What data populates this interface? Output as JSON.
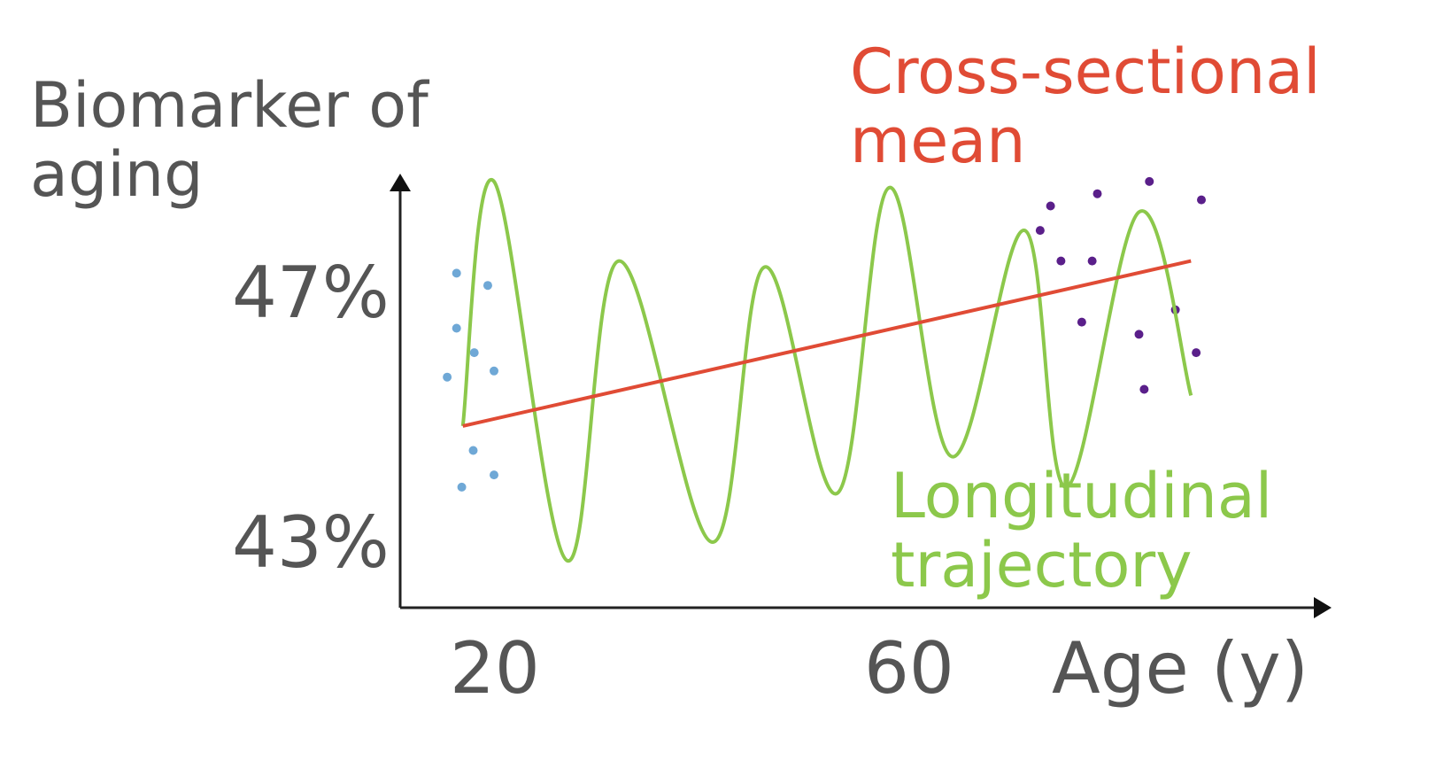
{
  "chart_data": {
    "type": "line",
    "ylabel": "Biomarker of aging",
    "xlabel": "Age (y)",
    "x_ticks": [
      "20",
      "60"
    ],
    "y_ticks": [
      "47%",
      "43%"
    ],
    "annotations": [
      {
        "text": "Cross-sectional mean",
        "color": "#e04b35"
      },
      {
        "text": "Longitudinal trajectory",
        "color": "#8cc84b"
      }
    ],
    "series": [
      {
        "name": "Cross-sectional mean",
        "color": "#e04b35",
        "x": [
          17,
          87
        ],
        "y": [
          44.9,
          47.6
        ]
      },
      {
        "name": "Longitudinal trajectory",
        "color": "#8cc84b",
        "x": [
          17,
          20,
          27,
          32,
          41,
          46,
          53,
          58,
          64,
          71,
          75,
          82,
          87
        ],
        "y": [
          44.9,
          48.9,
          42.7,
          47.6,
          43.0,
          47.5,
          43.8,
          48.8,
          44.4,
          48.1,
          43.9,
          48.4,
          45.4
        ]
      }
    ],
    "scatter": [
      {
        "group": "young",
        "color": "#6fa8d6",
        "x": [
          15.5,
          16.4,
          16.4,
          19.4,
          18.1,
          18.0,
          20.0,
          20.0,
          16.9
        ],
        "y": [
          45.7,
          47.4,
          46.5,
          47.2,
          46.1,
          44.5,
          45.8,
          44.1,
          43.9
        ]
      },
      {
        "group": "old",
        "color": "#5a1f8a",
        "x": [
          73.5,
          78.0,
          83.0,
          88.0,
          74.5,
          77.5,
          72.5,
          76.5,
          82.0,
          85.5,
          82.5,
          87.5
        ],
        "y": [
          48.5,
          48.7,
          48.9,
          48.6,
          47.6,
          47.6,
          48.1,
          46.6,
          46.4,
          46.8,
          45.5,
          46.1
        ]
      }
    ],
    "grid": false,
    "legend": "none"
  }
}
